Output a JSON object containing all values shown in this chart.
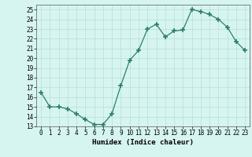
{
  "x": [
    0,
    1,
    2,
    3,
    4,
    5,
    6,
    7,
    8,
    9,
    10,
    11,
    12,
    13,
    14,
    15,
    16,
    17,
    18,
    19,
    20,
    21,
    22,
    23
  ],
  "y": [
    16.5,
    15.0,
    15.0,
    14.8,
    14.3,
    13.7,
    13.2,
    13.2,
    14.3,
    17.2,
    19.8,
    20.8,
    23.0,
    23.5,
    22.2,
    22.8,
    22.9,
    25.0,
    24.8,
    24.5,
    24.0,
    23.2,
    21.7,
    20.8
  ],
  "line_color": "#2e7d6e",
  "marker": "+",
  "marker_size": 4,
  "bg_color": "#d6f5f0",
  "grid_color": "#b8ddd6",
  "xlabel": "Humidex (Indice chaleur)",
  "xlim": [
    -0.5,
    23.5
  ],
  "ylim": [
    13,
    25.5
  ],
  "yticks": [
    13,
    14,
    15,
    16,
    17,
    18,
    19,
    20,
    21,
    22,
    23,
    24,
    25
  ],
  "xticks": [
    0,
    1,
    2,
    3,
    4,
    5,
    6,
    7,
    8,
    9,
    10,
    11,
    12,
    13,
    14,
    15,
    16,
    17,
    18,
    19,
    20,
    21,
    22,
    23
  ]
}
